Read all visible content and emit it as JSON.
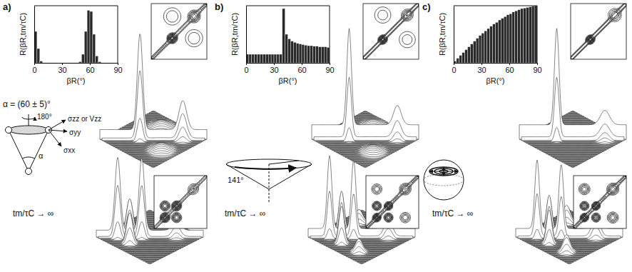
{
  "chart_data": [
    {
      "type": "histogram",
      "label": "a)",
      "x_label": "βR(°)",
      "y_label": "R(βR,tm/τC)",
      "bins": [
        0,
        3,
        6,
        9,
        12,
        15,
        18,
        21,
        24,
        27,
        30,
        33,
        36,
        39,
        42,
        45,
        48,
        51,
        54,
        57,
        60,
        63,
        66,
        69,
        72,
        75,
        78,
        81,
        84,
        87,
        90
      ],
      "counts": [
        0.55,
        0.25,
        0.03,
        0,
        0,
        0,
        0,
        0,
        0,
        0,
        0,
        0,
        0,
        0,
        0,
        0,
        0.02,
        0.15,
        0.55,
        0.92,
        0.9,
        0.5,
        0.12,
        0.02,
        0,
        0,
        0,
        0,
        0,
        0
      ],
      "xlim": [
        0,
        90
      ],
      "xticks": [
        0,
        30,
        60,
        90
      ],
      "ylim": [
        0,
        1
      ],
      "tick_labels": "x",
      "diagram": {
        "type": "molecule",
        "texts": [
          "α = (60 ± 5)°",
          "180°",
          "σzz or Vzz",
          "σyy",
          "σxx",
          "α"
        ]
      },
      "mixing_label": "tm/τC → ∞",
      "spectra": [
        {
          "ridge": [
            0.1,
            0.05
          ],
          "peaks": [
            [
              -0.25,
              -0.25,
              1.0,
              0.07
            ],
            [
              0.55,
              0.55,
              0.3,
              0.1
            ],
            [
              -0.25,
              0.55,
              0.07,
              0.2
            ],
            [
              0.55,
              -0.25,
              0.07,
              0.2
            ]
          ]
        },
        {
          "ridge": [
            0.08,
            0.05
          ],
          "peaks": [
            [
              -0.6,
              -0.6,
              0.85,
              0.07
            ],
            [
              -0.15,
              -0.15,
              0.85,
              0.07
            ],
            [
              -0.6,
              -0.15,
              0.4,
              0.08
            ],
            [
              -0.15,
              -0.6,
              0.4,
              0.08
            ],
            [
              0.5,
              0.5,
              0.15,
              0.1
            ]
          ]
        }
      ]
    },
    {
      "type": "histogram",
      "label": "b)",
      "x_label": "βR(°)",
      "y_label": "R(βR,tm/τC)",
      "bins": [
        0,
        3,
        6,
        9,
        12,
        15,
        18,
        21,
        24,
        27,
        30,
        33,
        36,
        39,
        42,
        45,
        48,
        51,
        54,
        57,
        60,
        63,
        66,
        69,
        72,
        75,
        78,
        81,
        84,
        87,
        90
      ],
      "counts": [
        0.15,
        0.15,
        0.15,
        0.15,
        0.15,
        0.15,
        0.15,
        0.15,
        0.15,
        0.15,
        0.15,
        0.15,
        0.15,
        0.95,
        0.5,
        0.42,
        0.38,
        0.36,
        0.34,
        0.33,
        0.32,
        0.31,
        0.3,
        0.3,
        0.29,
        0.29,
        0.28,
        0.28,
        0.28,
        0.27
      ],
      "xlim": [
        0,
        90
      ],
      "xticks": [
        0,
        30,
        60,
        90
      ],
      "ylim": [
        0,
        1
      ],
      "tick_labels": "x",
      "diagram": {
        "type": "cone",
        "texts": [
          "141°"
        ]
      },
      "mixing_label": "tm/τC → ∞",
      "spectra": [
        {
          "ridge": [
            0.15,
            0.05
          ],
          "peaks": [
            [
              -0.3,
              -0.3,
              1.0,
              0.06
            ],
            [
              0.6,
              0.6,
              0.2,
              0.1
            ],
            [
              -0.3,
              0.6,
              0.06,
              0.2
            ],
            [
              0.6,
              -0.3,
              0.06,
              0.2
            ]
          ]
        },
        {
          "ridge": [
            0.1,
            0.05
          ],
          "peaks": [
            [
              -0.6,
              -0.6,
              0.85,
              0.06
            ],
            [
              -0.15,
              -0.15,
              0.8,
              0.06
            ],
            [
              -0.6,
              -0.15,
              0.5,
              0.07
            ],
            [
              -0.15,
              -0.6,
              0.5,
              0.07
            ],
            [
              0.5,
              0.5,
              0.25,
              0.1
            ],
            [
              -0.6,
              0.5,
              0.15,
              0.1
            ],
            [
              0.5,
              -0.6,
              0.15,
              0.1
            ]
          ]
        }
      ]
    },
    {
      "type": "histogram",
      "label": "c)",
      "x_label": "βR(°)",
      "y_label": "R(βR,tm/τC)",
      "bins": [
        0,
        3,
        6,
        9,
        12,
        15,
        18,
        21,
        24,
        27,
        30,
        33,
        36,
        39,
        42,
        45,
        48,
        51,
        54,
        57,
        60,
        63,
        66,
        69,
        72,
        75,
        78,
        81,
        84,
        87,
        90
      ],
      "counts": [
        0.03,
        0.08,
        0.13,
        0.18,
        0.23,
        0.28,
        0.33,
        0.38,
        0.43,
        0.48,
        0.52,
        0.56,
        0.6,
        0.64,
        0.68,
        0.71,
        0.75,
        0.78,
        0.81,
        0.84,
        0.86,
        0.89,
        0.91,
        0.93,
        0.95,
        0.96,
        0.97,
        0.98,
        0.99,
        1.0
      ],
      "xlim": [
        0,
        90
      ],
      "xticks": [
        0,
        30,
        60,
        90
      ],
      "ylim": [
        0,
        1
      ],
      "tick_labels": "x",
      "diagram": {
        "type": "sphere"
      },
      "mixing_label": "tm/τC → ∞",
      "spectra": [
        {
          "ridge": [
            0.15,
            0.05
          ],
          "peaks": [
            [
              -0.3,
              -0.3,
              1.0,
              0.06
            ],
            [
              0.6,
              0.6,
              0.15,
              0.12
            ]
          ]
        },
        {
          "ridge": [
            0.1,
            0.05
          ],
          "peaks": [
            [
              -0.6,
              -0.6,
              0.8,
              0.06
            ],
            [
              -0.15,
              -0.15,
              0.75,
              0.06
            ],
            [
              -0.6,
              -0.15,
              0.45,
              0.07
            ],
            [
              -0.15,
              -0.6,
              0.45,
              0.07
            ],
            [
              0.5,
              0.5,
              0.3,
              0.1
            ],
            [
              -0.6,
              0.5,
              0.2,
              0.1
            ],
            [
              0.5,
              -0.6,
              0.2,
              0.1
            ]
          ]
        }
      ]
    }
  ]
}
